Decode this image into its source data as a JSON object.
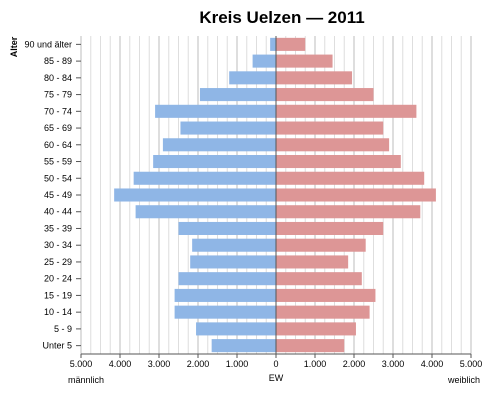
{
  "chart_data": {
    "type": "bar",
    "title": "Kreis Uelzen — 2011",
    "ylabel": "Alter",
    "xlabel": "EW",
    "left_label": "männlich",
    "right_label": "weiblich",
    "xlim": [
      -5000,
      5000
    ],
    "xticks": [
      -5000,
      -4000,
      -3000,
      -2000,
      -1000,
      0,
      1000,
      2000,
      3000,
      4000,
      5000
    ],
    "xtick_labels": [
      "5.000",
      "4.000",
      "3.000",
      "2.000",
      "1.000",
      "0",
      "1.000",
      "2.000",
      "3.000",
      "4.000",
      "5.000"
    ],
    "grid": true,
    "categories": [
      "90 und älter",
      "85 - 89",
      "80 - 84",
      "75 - 79",
      "70 - 74",
      "65 - 69",
      "60 - 64",
      "55 - 59",
      "50 - 54",
      "45 - 49",
      "40 - 44",
      "35 - 39",
      "30 - 34",
      "25 - 29",
      "20 - 24",
      "15 - 19",
      "10 - 14",
      "5 - 9",
      "Unter 5"
    ],
    "series": [
      {
        "name": "männlich",
        "color": "#8fb6e6",
        "values": [
          150,
          600,
          1200,
          1950,
          3100,
          2450,
          2900,
          3150,
          3650,
          4150,
          3600,
          2500,
          2150,
          2200,
          2500,
          2600,
          2600,
          2050,
          1650
        ]
      },
      {
        "name": "weiblich",
        "color": "#dd9696",
        "values": [
          750,
          1450,
          1950,
          2500,
          3600,
          2750,
          2900,
          3200,
          3800,
          4100,
          3700,
          2750,
          2300,
          1850,
          2200,
          2550,
          2400,
          2050,
          1750
        ]
      }
    ]
  }
}
